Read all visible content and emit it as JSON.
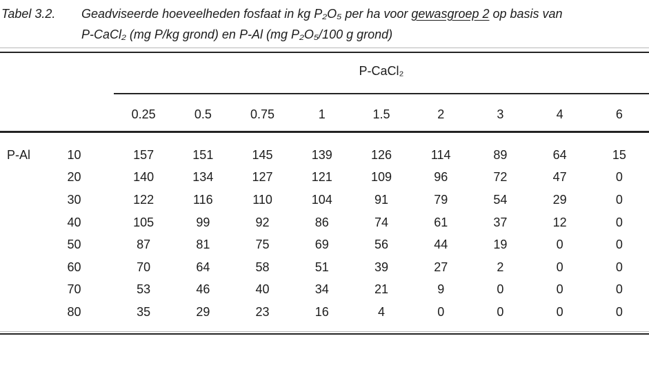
{
  "caption": {
    "label": "Tabel 3.2.",
    "line1_before": "Geadviseerde hoeveelheden fosfaat in kg P₂O₅ per ha voor ",
    "line1_underlined": "gewasgroep 2",
    "line1_after": " op basis van",
    "line2": "P-CaCl₂ (mg P/kg grond) en P-Al (mg P₂O₅/100 g grond)"
  },
  "table": {
    "column_group_header": "P-CaCl₂",
    "row_group_header": "P-Al",
    "column_headers": [
      "0.25",
      "0.5",
      "0.75",
      "1",
      "1.5",
      "2",
      "3",
      "4",
      "6"
    ],
    "rows": [
      {
        "key": "10",
        "values": [
          "157",
          "151",
          "145",
          "139",
          "126",
          "114",
          "89",
          "64",
          "15"
        ]
      },
      {
        "key": "20",
        "values": [
          "140",
          "134",
          "127",
          "121",
          "109",
          "96",
          "72",
          "47",
          "0"
        ]
      },
      {
        "key": "30",
        "values": [
          "122",
          "116",
          "110",
          "104",
          "91",
          "79",
          "54",
          "29",
          "0"
        ]
      },
      {
        "key": "40",
        "values": [
          "105",
          "99",
          "92",
          "86",
          "74",
          "61",
          "37",
          "12",
          "0"
        ]
      },
      {
        "key": "50",
        "values": [
          "87",
          "81",
          "75",
          "69",
          "56",
          "44",
          "19",
          "0",
          "0"
        ]
      },
      {
        "key": "60",
        "values": [
          "70",
          "64",
          "58",
          "51",
          "39",
          "27",
          "2",
          "0",
          "0"
        ]
      },
      {
        "key": "70",
        "values": [
          "53",
          "46",
          "40",
          "34",
          "21",
          "9",
          "0",
          "0",
          "0"
        ]
      },
      {
        "key": "80",
        "values": [
          "35",
          "29",
          "23",
          "16",
          "4",
          "0",
          "0",
          "0",
          "0"
        ]
      }
    ]
  },
  "colors": {
    "text": "#1c1c1c",
    "rule_dark": "#232323",
    "rule_light": "#b8b8b8",
    "background": "#ffffff"
  }
}
